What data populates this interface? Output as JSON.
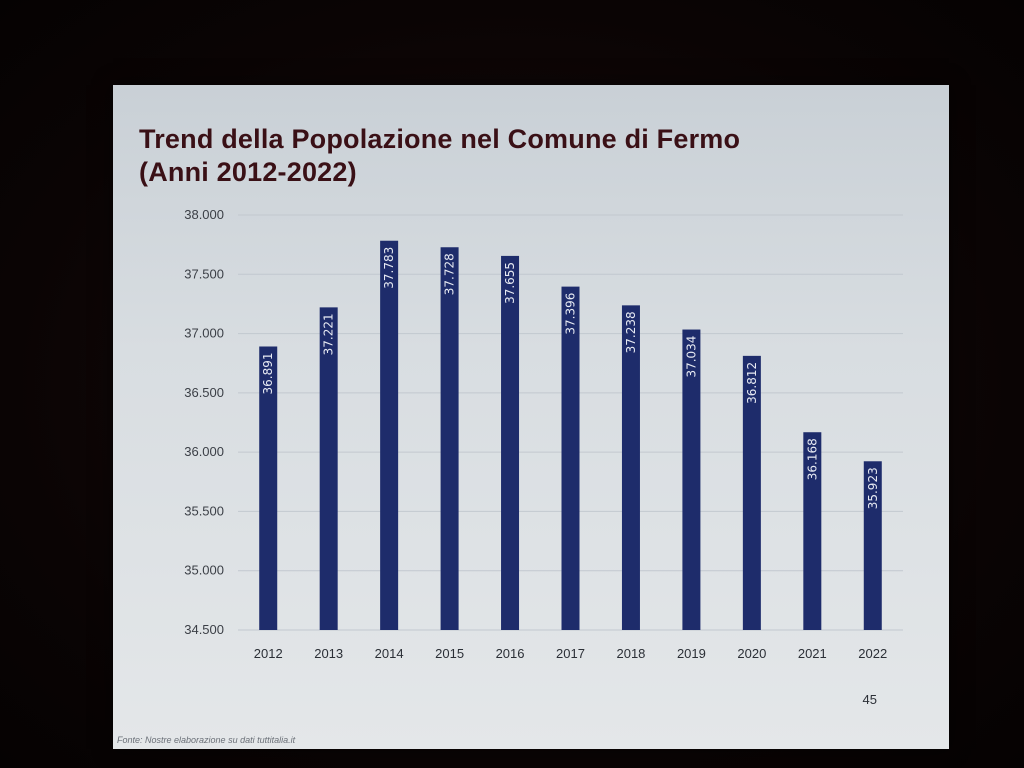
{
  "slide": {
    "title_line1": "Trend della Popolazione nel Comune di Fermo",
    "title_line2": "(Anni 2012-2022)",
    "page_number": "45",
    "source": "Fonte: Nostre elaborazione su dati tuttitalia.it"
  },
  "colors": {
    "bar": "#1e2c6b",
    "title": "#3a1016",
    "grid": "#c2c8cf"
  },
  "chart_data": {
    "type": "bar",
    "title": "Trend della Popolazione nel Comune di Fermo (Anni 2012-2022)",
    "xlabel": "",
    "ylabel": "",
    "categories": [
      "2012",
      "2013",
      "2014",
      "2015",
      "2016",
      "2017",
      "2018",
      "2019",
      "2020",
      "2021",
      "2022"
    ],
    "values": [
      36891,
      37221,
      37783,
      37728,
      37655,
      37396,
      37238,
      37034,
      36812,
      36168,
      35923
    ],
    "value_labels": [
      "36.891",
      "37.221",
      "37.783",
      "37.728",
      "37.655",
      "37.396",
      "37.238",
      "37.034",
      "36.812",
      "36.168",
      "35.923"
    ],
    "ylim": [
      34500,
      38000
    ],
    "yticks": [
      34500,
      35000,
      35500,
      36000,
      36500,
      37000,
      37500,
      38000
    ],
    "ytick_labels": [
      "34.500",
      "35.000",
      "35.500",
      "36.000",
      "36.500",
      "37.000",
      "37.500",
      "38.000"
    ],
    "grid": true,
    "legend": "none",
    "data_label_orientation": "vertical-inside-top"
  }
}
